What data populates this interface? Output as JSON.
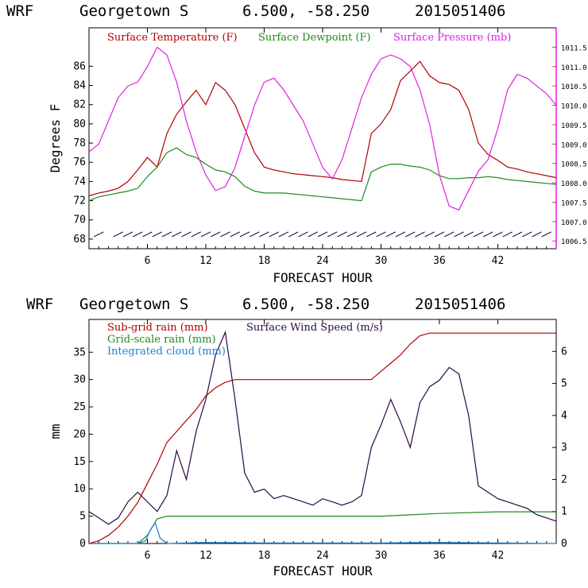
{
  "chart_data": [
    {
      "type": "line",
      "header": {
        "model": "WRF",
        "station": "Georgetown S",
        "coords": "6.500, -58.250",
        "run": "2015051406"
      },
      "xlabel": "FORECAST HOUR",
      "ylabel": "Degrees F",
      "xlim": [
        0,
        48
      ],
      "ylim": [
        67,
        90
      ],
      "y2lim": [
        1006.3,
        1012.0
      ],
      "xticks": [
        6,
        12,
        18,
        24,
        30,
        36,
        42
      ],
      "yticks": [
        68,
        70,
        72,
        74,
        76,
        78,
        80,
        82,
        84,
        86
      ],
      "y2ticks": [
        "1006.5",
        "1007.0",
        "1007.5",
        "1008.0",
        "1008.5",
        "1009.0",
        "1009.5",
        "1010.0",
        "1010.5",
        "1011.0",
        "1011.5"
      ],
      "colors": {
        "temperature": "#b30000",
        "dewpoint": "#1e8a1e",
        "pressure": "#e020e0",
        "wind": "#2a0a40"
      },
      "series": [
        {
          "name": "Surface Temperature (F)",
          "axis": "left",
          "color": "#b30000",
          "x": [
            0,
            1,
            2,
            3,
            4,
            5,
            6,
            7,
            8,
            9,
            10,
            11,
            12,
            13,
            14,
            15,
            16,
            17,
            18,
            19,
            20,
            21,
            22,
            23,
            24,
            25,
            26,
            27,
            28,
            29,
            30,
            31,
            32,
            33,
            34,
            35,
            36,
            37,
            38,
            39,
            40,
            41,
            42,
            43,
            44,
            45,
            46,
            47,
            48
          ],
          "y": [
            72.5,
            72.8,
            73.0,
            73.3,
            74.0,
            75.2,
            76.5,
            75.5,
            79.0,
            81.0,
            82.3,
            83.5,
            82.0,
            84.3,
            83.5,
            82.0,
            79.5,
            77.0,
            75.5,
            75.2,
            75.0,
            74.8,
            74.7,
            74.6,
            74.5,
            74.4,
            74.2,
            74.1,
            74.0,
            79.0,
            80.0,
            81.5,
            84.5,
            85.5,
            86.5,
            85.0,
            84.3,
            84.1,
            83.5,
            81.5,
            78.0,
            76.8,
            76.2,
            75.5,
            75.3,
            75.0,
            74.8,
            74.6,
            74.4
          ]
        },
        {
          "name": "Surface Dewpoint (F)",
          "axis": "left",
          "color": "#1e8a1e",
          "x": [
            0,
            1,
            2,
            3,
            4,
            5,
            6,
            7,
            8,
            9,
            10,
            11,
            12,
            13,
            14,
            15,
            16,
            17,
            18,
            19,
            20,
            21,
            22,
            23,
            24,
            25,
            26,
            27,
            28,
            29,
            30,
            31,
            32,
            33,
            34,
            35,
            36,
            37,
            38,
            39,
            40,
            41,
            42,
            43,
            44,
            45,
            46,
            47,
            48
          ],
          "y": [
            72.0,
            72.4,
            72.6,
            72.8,
            73.0,
            73.3,
            74.5,
            75.5,
            77.0,
            77.5,
            76.8,
            76.5,
            75.8,
            75.2,
            75.0,
            74.5,
            73.5,
            73.0,
            72.8,
            72.8,
            72.8,
            72.7,
            72.6,
            72.5,
            72.4,
            72.3,
            72.2,
            72.1,
            72.0,
            75.0,
            75.5,
            75.8,
            75.8,
            75.6,
            75.5,
            75.2,
            74.6,
            74.3,
            74.3,
            74.4,
            74.4,
            74.5,
            74.4,
            74.2,
            74.1,
            74.0,
            73.9,
            73.8,
            73.7
          ]
        },
        {
          "name": "Surface Pressure (mb)",
          "axis": "right",
          "color": "#e020e0",
          "x": [
            0,
            1,
            2,
            3,
            4,
            5,
            6,
            7,
            8,
            9,
            10,
            11,
            12,
            13,
            14,
            15,
            16,
            17,
            18,
            19,
            20,
            21,
            22,
            23,
            24,
            25,
            26,
            27,
            28,
            29,
            30,
            31,
            32,
            33,
            34,
            35,
            36,
            37,
            38,
            39,
            40,
            41,
            42,
            43,
            44,
            45,
            46,
            47,
            48
          ],
          "y": [
            1008.8,
            1009.0,
            1009.6,
            1010.2,
            1010.5,
            1010.6,
            1011.0,
            1011.5,
            1011.3,
            1010.6,
            1009.6,
            1008.8,
            1008.2,
            1007.8,
            1007.9,
            1008.4,
            1009.2,
            1010.0,
            1010.6,
            1010.7,
            1010.4,
            1010.0,
            1009.6,
            1009.0,
            1008.4,
            1008.1,
            1008.6,
            1009.4,
            1010.2,
            1010.8,
            1011.2,
            1011.3,
            1011.2,
            1011.0,
            1010.4,
            1009.5,
            1008.2,
            1007.4,
            1007.3,
            1007.8,
            1008.3,
            1008.6,
            1009.4,
            1010.4,
            1010.8,
            1010.7,
            1010.5,
            1010.3,
            1010.0
          ]
        }
      ],
      "wind_barbs": {
        "hours": [
          1,
          3,
          4,
          5,
          6,
          7,
          8,
          9,
          10,
          11,
          12,
          13,
          14,
          15,
          16,
          17,
          18,
          19,
          20,
          21,
          22,
          23,
          24,
          25,
          26,
          27,
          28,
          29,
          30,
          31,
          32,
          33,
          34,
          35,
          36,
          37,
          38,
          39,
          40,
          41,
          42,
          43,
          44,
          45,
          46,
          47
        ],
        "level": 68.5
      }
    },
    {
      "type": "line",
      "header": {
        "model": "WRF",
        "station": "Georgetown S",
        "coords": "6.500, -58.250",
        "run": "2015051406"
      },
      "xlabel": "FORECAST HOUR",
      "ylabel": "mm",
      "xlim": [
        0,
        48
      ],
      "ylim": [
        0,
        41
      ],
      "y2lim": [
        0,
        7.0
      ],
      "xticks": [
        6,
        12,
        18,
        24,
        30,
        36,
        42
      ],
      "yticks": [
        0,
        5,
        10,
        15,
        20,
        25,
        30,
        35
      ],
      "y2ticks": [
        0,
        1,
        2,
        3,
        4,
        5,
        6
      ],
      "colors": {
        "subgrid": "#b30000",
        "gridscale": "#1e8a1e",
        "cloud": "#1a7fd0",
        "wind": "#2a0a40"
      },
      "series": [
        {
          "name": "Sub-grid rain (mm)",
          "axis": "left",
          "color": "#b30000",
          "x": [
            0,
            1,
            2,
            3,
            4,
            5,
            6,
            7,
            8,
            9,
            10,
            11,
            12,
            13,
            14,
            15,
            16,
            17,
            18,
            19,
            20,
            21,
            22,
            23,
            24,
            25,
            26,
            27,
            28,
            29,
            30,
            31,
            32,
            33,
            34,
            35,
            36,
            37,
            38,
            39,
            40,
            41,
            42,
            43,
            44,
            45,
            46,
            47,
            48
          ],
          "y": [
            0,
            0.5,
            1.5,
            3.0,
            5.0,
            7.5,
            11.0,
            14.5,
            18.5,
            20.5,
            22.5,
            24.5,
            27.0,
            28.5,
            29.5,
            30.0,
            30.0,
            30.0,
            30.0,
            30.0,
            30.0,
            30.0,
            30.0,
            30.0,
            30.0,
            30.0,
            30.0,
            30.0,
            30.0,
            30.0,
            31.5,
            33.0,
            34.5,
            36.5,
            38.0,
            38.5,
            38.5,
            38.5,
            38.5,
            38.5,
            38.5,
            38.5,
            38.5,
            38.5,
            38.5,
            38.5,
            38.5,
            38.5,
            38.5
          ]
        },
        {
          "name": "Grid-scale rain (mm)",
          "axis": "left",
          "color": "#1e8a1e",
          "x": [
            0,
            5,
            6,
            7,
            8,
            10,
            12,
            18,
            24,
            30,
            36,
            42,
            48
          ],
          "y": [
            0,
            0,
            1.5,
            4.5,
            5.0,
            5.0,
            5.0,
            5.0,
            5.0,
            5.0,
            5.5,
            5.8,
            5.8
          ]
        },
        {
          "name": "Integrated cloud (mm)",
          "axis": "left",
          "color": "#1a7fd0",
          "x": [
            0,
            5,
            5.8,
            6.3,
            6.8,
            7.3,
            8,
            12,
            18,
            24,
            30,
            36,
            42,
            48
          ],
          "y": [
            0,
            0,
            0.5,
            2.5,
            3.8,
            1.0,
            0,
            0.2,
            0.1,
            0.1,
            0.1,
            0.2,
            0.1,
            0
          ]
        },
        {
          "name": "Surface Wind Speed (m/s)",
          "axis": "right",
          "color": "#2a0a40",
          "x": [
            0,
            1,
            2,
            3,
            4,
            5,
            6,
            7,
            8,
            9,
            10,
            11,
            12,
            13,
            14,
            15,
            16,
            17,
            18,
            19,
            20,
            21,
            22,
            23,
            24,
            25,
            26,
            27,
            28,
            29,
            30,
            31,
            32,
            33,
            34,
            35,
            36,
            37,
            38,
            39,
            40,
            41,
            42,
            43,
            44,
            45,
            46,
            47,
            48
          ],
          "y": [
            1.0,
            0.8,
            0.6,
            0.8,
            1.3,
            1.6,
            1.3,
            1.0,
            1.5,
            2.9,
            2.0,
            3.5,
            4.5,
            5.9,
            6.6,
            4.5,
            2.2,
            1.6,
            1.7,
            1.4,
            1.5,
            1.4,
            1.3,
            1.2,
            1.4,
            1.3,
            1.2,
            1.3,
            1.5,
            3.0,
            3.7,
            4.5,
            3.8,
            3.0,
            4.4,
            4.9,
            5.1,
            5.5,
            5.3,
            4.0,
            1.8,
            1.6,
            1.4,
            1.3,
            1.2,
            1.1,
            0.9,
            0.8,
            0.7
          ]
        }
      ]
    }
  ]
}
